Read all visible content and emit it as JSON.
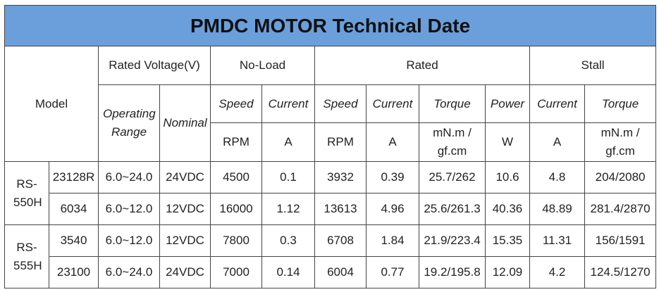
{
  "title": "PMDC MOTOR Technical Date",
  "header": {
    "model": "Model",
    "rated_voltage": "Rated Voltage(V)",
    "no_load": "No-Load",
    "rated": "Rated",
    "stall": "Stall",
    "operating_range": "Operating Range",
    "nominal": "Nominal",
    "columns": [
      "Speed",
      "Current",
      "Speed",
      "Current",
      "Torque",
      "Power",
      "Current",
      "Torque"
    ],
    "units": [
      "RPM",
      "A",
      "RPM",
      "A",
      "mN.m / gf.cm",
      "W",
      "A",
      "mN.m / gf.cm"
    ]
  },
  "groups": [
    {
      "series": "RS-550H",
      "rows": [
        [
          "23128R",
          "6.0~24.0",
          "24VDC",
          "4500",
          "0.1",
          "3932",
          "0.39",
          "25.7/262",
          "10.6",
          "4.8",
          "204/2080"
        ],
        [
          "6034",
          "6.0~12.0",
          "12VDC",
          "16000",
          "1.12",
          "13613",
          "4.96",
          "25.6/261.3",
          "40.36",
          "48.89",
          "281.4/2870"
        ]
      ]
    },
    {
      "series": "RS-555H",
      "rows": [
        [
          "3540",
          "6.0~12.0",
          "12VDC",
          "7800",
          "0.3",
          "6708",
          "1.84",
          "21.9/223.4",
          "15.35",
          "11.31",
          "156/1591"
        ],
        [
          "23100",
          "6.0~24.0",
          "24VDC",
          "7000",
          "0.14",
          "6004",
          "0.77",
          "19.2/195.8",
          "12.09",
          "4.2",
          "124.5/1270"
        ]
      ]
    }
  ]
}
